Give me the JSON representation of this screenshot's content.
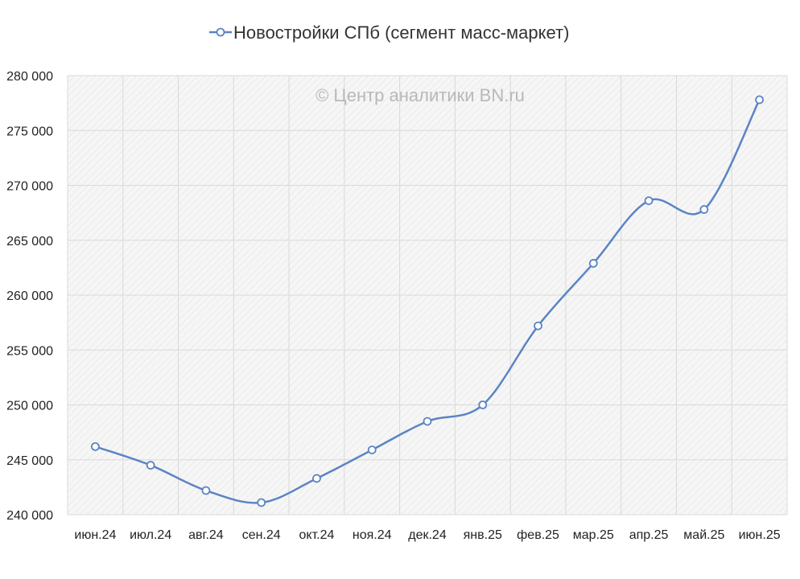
{
  "chart_data": {
    "type": "line",
    "legend_position": "top-center",
    "grid": true,
    "series_color": "#5b84c4",
    "marker_fill": "#ffffff",
    "plot_background": "#f4f4f4",
    "grid_color": "#d9d9d9",
    "watermark": "© Центр аналитики BN.ru",
    "categories": [
      "июн.24",
      "июл.24",
      "авг.24",
      "сен.24",
      "окт.24",
      "ноя.24",
      "дек.24",
      "янв.25",
      "фев.25",
      "мар.25",
      "апр.25",
      "май.25",
      "июн.25"
    ],
    "series": [
      {
        "name": "Новостройки СПб (сегмент масс-маркет)",
        "values": [
          246200,
          244500,
          242200,
          241100,
          243300,
          245900,
          248500,
          250000,
          257200,
          262900,
          268600,
          267800,
          277800
        ]
      }
    ],
    "ylim": [
      240000,
      280000
    ],
    "y_ticks": [
      240000,
      245000,
      250000,
      255000,
      260000,
      265000,
      270000,
      275000,
      280000
    ],
    "y_tick_labels": [
      "240 000",
      "245 000",
      "250 000",
      "255 000",
      "260 000",
      "265 000",
      "270 000",
      "275 000",
      "280 000"
    ],
    "title": "",
    "xlabel": "",
    "ylabel": ""
  }
}
